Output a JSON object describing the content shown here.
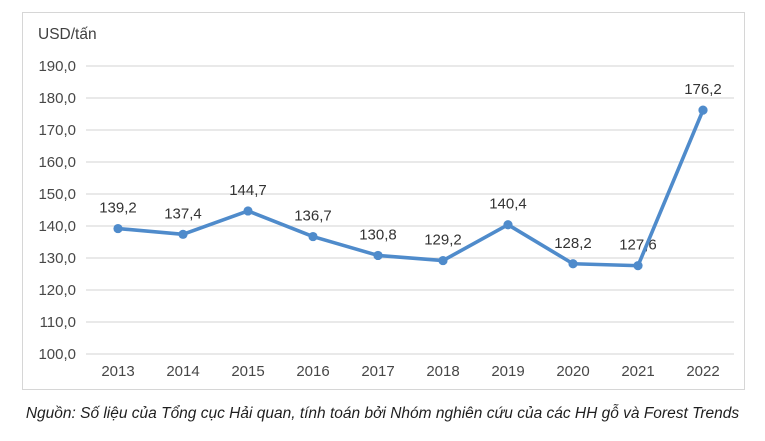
{
  "chart_data": {
    "type": "line",
    "unit_label": "USD/tấn",
    "categories": [
      "2013",
      "2014",
      "2015",
      "2016",
      "2017",
      "2018",
      "2019",
      "2020",
      "2021",
      "2022"
    ],
    "series": [
      {
        "values": [
          139.2,
          137.4,
          144.7,
          136.7,
          130.8,
          129.2,
          140.4,
          128.2,
          127.6,
          176.2
        ],
        "labels": [
          "139,2",
          "137,4",
          "144,7",
          "136,7",
          "130,8",
          "129,2",
          "140,4",
          "128,2",
          "127,6",
          "176,2"
        ]
      }
    ],
    "ylim": [
      100,
      190
    ],
    "ytick_values": [
      190,
      180,
      170,
      160,
      150,
      140,
      130,
      120,
      110,
      100
    ],
    "ytick_labels": [
      "190,0",
      "180,0",
      "170,0",
      "160,0",
      "150,0",
      "140,0",
      "130,0",
      "120,0",
      "110,0",
      "100,0"
    ],
    "grid": true,
    "legend": "none",
    "colors": {
      "line": "#4f8bcb",
      "grid": "#dcdcdc",
      "frame": "#d6d6d6",
      "axis_text": "#474747",
      "data_label_text": "#333333"
    }
  },
  "caption": {
    "text": "Nguồn: Số liệu của Tổng cục Hải quan, tính toán bởi Nhóm nghiên cứu của các HH gỗ và Forest Trends"
  }
}
